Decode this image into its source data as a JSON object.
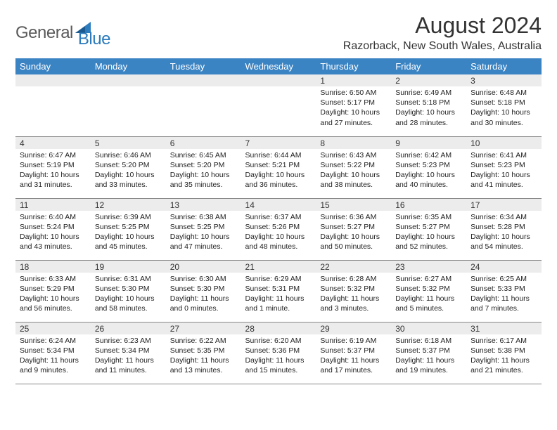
{
  "logo": {
    "text1": "General",
    "text2": "Blue"
  },
  "title": "August 2024",
  "location": "Razorback, New South Wales, Australia",
  "colors": {
    "header_bg": "#3b84c4",
    "header_text": "#ffffff",
    "daynum_bg": "#ececec",
    "border": "#888888",
    "logo_gray": "#5a5a5a",
    "logo_blue": "#2b7bbd"
  },
  "weekdays": [
    "Sunday",
    "Monday",
    "Tuesday",
    "Wednesday",
    "Thursday",
    "Friday",
    "Saturday"
  ],
  "weeks": [
    [
      null,
      null,
      null,
      null,
      {
        "n": "1",
        "sr": "Sunrise: 6:50 AM",
        "ss": "Sunset: 5:17 PM",
        "dl": "Daylight: 10 hours and 27 minutes."
      },
      {
        "n": "2",
        "sr": "Sunrise: 6:49 AM",
        "ss": "Sunset: 5:18 PM",
        "dl": "Daylight: 10 hours and 28 minutes."
      },
      {
        "n": "3",
        "sr": "Sunrise: 6:48 AM",
        "ss": "Sunset: 5:18 PM",
        "dl": "Daylight: 10 hours and 30 minutes."
      }
    ],
    [
      {
        "n": "4",
        "sr": "Sunrise: 6:47 AM",
        "ss": "Sunset: 5:19 PM",
        "dl": "Daylight: 10 hours and 31 minutes."
      },
      {
        "n": "5",
        "sr": "Sunrise: 6:46 AM",
        "ss": "Sunset: 5:20 PM",
        "dl": "Daylight: 10 hours and 33 minutes."
      },
      {
        "n": "6",
        "sr": "Sunrise: 6:45 AM",
        "ss": "Sunset: 5:20 PM",
        "dl": "Daylight: 10 hours and 35 minutes."
      },
      {
        "n": "7",
        "sr": "Sunrise: 6:44 AM",
        "ss": "Sunset: 5:21 PM",
        "dl": "Daylight: 10 hours and 36 minutes."
      },
      {
        "n": "8",
        "sr": "Sunrise: 6:43 AM",
        "ss": "Sunset: 5:22 PM",
        "dl": "Daylight: 10 hours and 38 minutes."
      },
      {
        "n": "9",
        "sr": "Sunrise: 6:42 AM",
        "ss": "Sunset: 5:23 PM",
        "dl": "Daylight: 10 hours and 40 minutes."
      },
      {
        "n": "10",
        "sr": "Sunrise: 6:41 AM",
        "ss": "Sunset: 5:23 PM",
        "dl": "Daylight: 10 hours and 41 minutes."
      }
    ],
    [
      {
        "n": "11",
        "sr": "Sunrise: 6:40 AM",
        "ss": "Sunset: 5:24 PM",
        "dl": "Daylight: 10 hours and 43 minutes."
      },
      {
        "n": "12",
        "sr": "Sunrise: 6:39 AM",
        "ss": "Sunset: 5:25 PM",
        "dl": "Daylight: 10 hours and 45 minutes."
      },
      {
        "n": "13",
        "sr": "Sunrise: 6:38 AM",
        "ss": "Sunset: 5:25 PM",
        "dl": "Daylight: 10 hours and 47 minutes."
      },
      {
        "n": "14",
        "sr": "Sunrise: 6:37 AM",
        "ss": "Sunset: 5:26 PM",
        "dl": "Daylight: 10 hours and 48 minutes."
      },
      {
        "n": "15",
        "sr": "Sunrise: 6:36 AM",
        "ss": "Sunset: 5:27 PM",
        "dl": "Daylight: 10 hours and 50 minutes."
      },
      {
        "n": "16",
        "sr": "Sunrise: 6:35 AM",
        "ss": "Sunset: 5:27 PM",
        "dl": "Daylight: 10 hours and 52 minutes."
      },
      {
        "n": "17",
        "sr": "Sunrise: 6:34 AM",
        "ss": "Sunset: 5:28 PM",
        "dl": "Daylight: 10 hours and 54 minutes."
      }
    ],
    [
      {
        "n": "18",
        "sr": "Sunrise: 6:33 AM",
        "ss": "Sunset: 5:29 PM",
        "dl": "Daylight: 10 hours and 56 minutes."
      },
      {
        "n": "19",
        "sr": "Sunrise: 6:31 AM",
        "ss": "Sunset: 5:30 PM",
        "dl": "Daylight: 10 hours and 58 minutes."
      },
      {
        "n": "20",
        "sr": "Sunrise: 6:30 AM",
        "ss": "Sunset: 5:30 PM",
        "dl": "Daylight: 11 hours and 0 minutes."
      },
      {
        "n": "21",
        "sr": "Sunrise: 6:29 AM",
        "ss": "Sunset: 5:31 PM",
        "dl": "Daylight: 11 hours and 1 minute."
      },
      {
        "n": "22",
        "sr": "Sunrise: 6:28 AM",
        "ss": "Sunset: 5:32 PM",
        "dl": "Daylight: 11 hours and 3 minutes."
      },
      {
        "n": "23",
        "sr": "Sunrise: 6:27 AM",
        "ss": "Sunset: 5:32 PM",
        "dl": "Daylight: 11 hours and 5 minutes."
      },
      {
        "n": "24",
        "sr": "Sunrise: 6:25 AM",
        "ss": "Sunset: 5:33 PM",
        "dl": "Daylight: 11 hours and 7 minutes."
      }
    ],
    [
      {
        "n": "25",
        "sr": "Sunrise: 6:24 AM",
        "ss": "Sunset: 5:34 PM",
        "dl": "Daylight: 11 hours and 9 minutes."
      },
      {
        "n": "26",
        "sr": "Sunrise: 6:23 AM",
        "ss": "Sunset: 5:34 PM",
        "dl": "Daylight: 11 hours and 11 minutes."
      },
      {
        "n": "27",
        "sr": "Sunrise: 6:22 AM",
        "ss": "Sunset: 5:35 PM",
        "dl": "Daylight: 11 hours and 13 minutes."
      },
      {
        "n": "28",
        "sr": "Sunrise: 6:20 AM",
        "ss": "Sunset: 5:36 PM",
        "dl": "Daylight: 11 hours and 15 minutes."
      },
      {
        "n": "29",
        "sr": "Sunrise: 6:19 AM",
        "ss": "Sunset: 5:37 PM",
        "dl": "Daylight: 11 hours and 17 minutes."
      },
      {
        "n": "30",
        "sr": "Sunrise: 6:18 AM",
        "ss": "Sunset: 5:37 PM",
        "dl": "Daylight: 11 hours and 19 minutes."
      },
      {
        "n": "31",
        "sr": "Sunrise: 6:17 AM",
        "ss": "Sunset: 5:38 PM",
        "dl": "Daylight: 11 hours and 21 minutes."
      }
    ]
  ]
}
